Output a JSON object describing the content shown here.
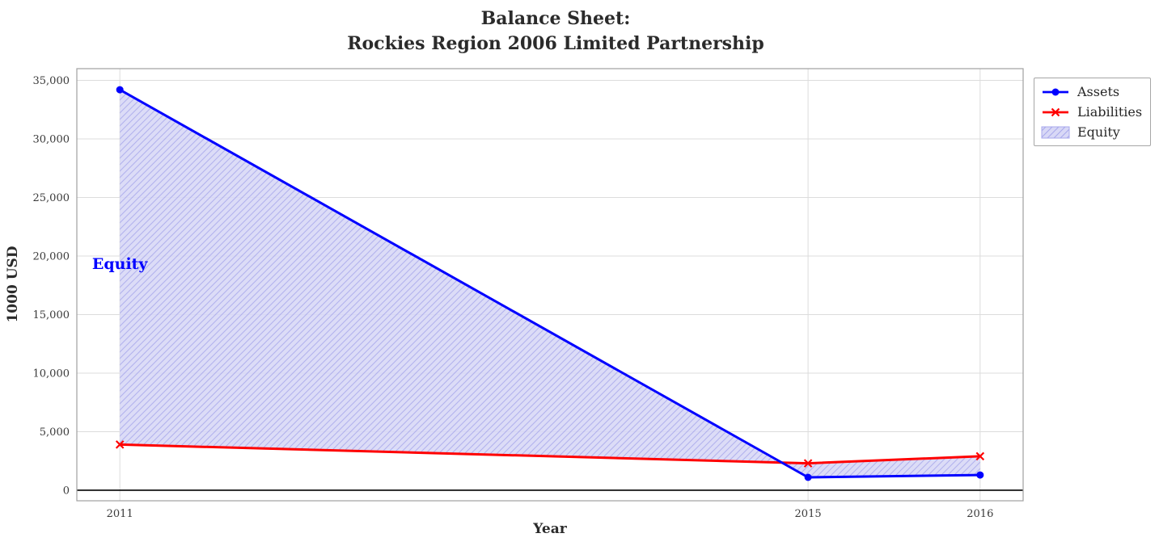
{
  "title": {
    "line1": "Balance Sheet:",
    "line2": "Rockies Region 2006 Limited Partnership"
  },
  "chart_data": {
    "type": "line",
    "x": [
      2011,
      2015,
      2016
    ],
    "series": [
      {
        "name": "Assets",
        "values": [
          34200,
          1100,
          1300
        ],
        "color": "#0000ff",
        "marker": "circle"
      },
      {
        "name": "Liabilities",
        "values": [
          3900,
          2300,
          2900
        ],
        "color": "#ff0000",
        "marker": "x"
      }
    ],
    "area": {
      "name": "Equity",
      "between": [
        "Assets",
        "Liabilities"
      ],
      "fill": "#d8d8f6",
      "hatch_color": "#a8a8ec",
      "label_color": "#0000ff",
      "annotation": {
        "text": "Equity",
        "x": 2011,
        "y": 19300
      }
    },
    "xlabel": "Year",
    "ylabel": "1000 USD",
    "xlim": [
      2010.75,
      2016.25
    ],
    "ylim": [
      -900,
      36000
    ],
    "yticks": [
      0,
      5000,
      10000,
      15000,
      20000,
      25000,
      30000,
      35000
    ],
    "ytick_labels": [
      "0",
      "5,000",
      "10,000",
      "15,000",
      "20,000",
      "25,000",
      "30,000",
      "35,000"
    ],
    "xticks": [
      2011,
      2015,
      2016
    ],
    "xtick_labels": [
      "2011",
      "2015",
      "2016"
    ],
    "grid": true,
    "grid_color": "#dcdcdc",
    "zero_line_color": "#000000",
    "legend": {
      "position": "top-right-outside",
      "entries": [
        "Assets",
        "Liabilities",
        "Equity"
      ]
    }
  }
}
